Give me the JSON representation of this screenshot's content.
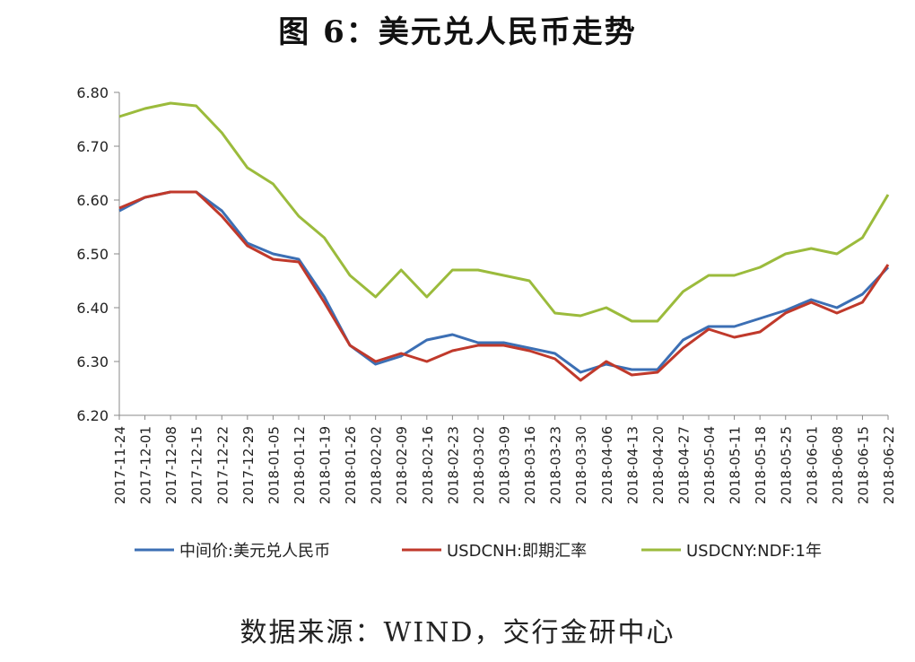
{
  "chart_data": {
    "type": "line",
    "title": "图 6：美元兑人民币走势",
    "source": "数据来源：WIND，交行金研中心",
    "xlabel": "",
    "ylabel": "",
    "ylim": [
      6.2,
      6.8
    ],
    "yticks": [
      "6.20",
      "6.30",
      "6.40",
      "6.50",
      "6.60",
      "6.70",
      "6.80"
    ],
    "x": [
      "2017-11-24",
      "2017-12-01",
      "2017-12-08",
      "2017-12-15",
      "2017-12-22",
      "2017-12-29",
      "2018-01-05",
      "2018-01-12",
      "2018-01-19",
      "2018-01-26",
      "2018-02-02",
      "2018-02-09",
      "2018-02-16",
      "2018-02-23",
      "2018-03-02",
      "2018-03-09",
      "2018-03-16",
      "2018-03-23",
      "2018-03-30",
      "2018-04-06",
      "2018-04-13",
      "2018-04-20",
      "2018-04-27",
      "2018-05-04",
      "2018-05-11",
      "2018-05-18",
      "2018-05-25",
      "2018-06-01",
      "2018-06-08",
      "2018-06-15",
      "2018-06-22"
    ],
    "grid": false,
    "legend_position": "bottom",
    "series": [
      {
        "name": "中间价:美元兑人民币",
        "color": "#3c6fb4",
        "values": [
          6.58,
          6.605,
          6.615,
          6.615,
          6.58,
          6.52,
          6.5,
          6.49,
          6.42,
          6.33,
          6.295,
          6.31,
          6.34,
          6.35,
          6.335,
          6.335,
          6.325,
          6.315,
          6.28,
          6.295,
          6.285,
          6.285,
          6.34,
          6.365,
          6.365,
          6.38,
          6.395,
          6.415,
          6.4,
          6.425,
          6.475
        ]
      },
      {
        "name": "USDCNH:即期汇率",
        "color": "#c0392b",
        "values": [
          6.585,
          6.605,
          6.615,
          6.615,
          6.57,
          6.515,
          6.49,
          6.485,
          6.41,
          6.33,
          6.3,
          6.315,
          6.3,
          6.32,
          6.33,
          6.33,
          6.32,
          6.305,
          6.265,
          6.3,
          6.275,
          6.28,
          6.325,
          6.36,
          6.345,
          6.355,
          6.39,
          6.41,
          6.39,
          6.41,
          6.48
        ]
      },
      {
        "name": "USDCNY:NDF:1年",
        "color": "#9bbb3c",
        "values": [
          6.755,
          6.77,
          6.78,
          6.775,
          6.725,
          6.66,
          6.63,
          6.57,
          6.53,
          6.46,
          6.42,
          6.47,
          6.42,
          6.47,
          6.47,
          6.46,
          6.45,
          6.39,
          6.385,
          6.4,
          6.375,
          6.375,
          6.43,
          6.46,
          6.46,
          6.475,
          6.5,
          6.51,
          6.5,
          6.53,
          6.61
        ]
      }
    ]
  }
}
